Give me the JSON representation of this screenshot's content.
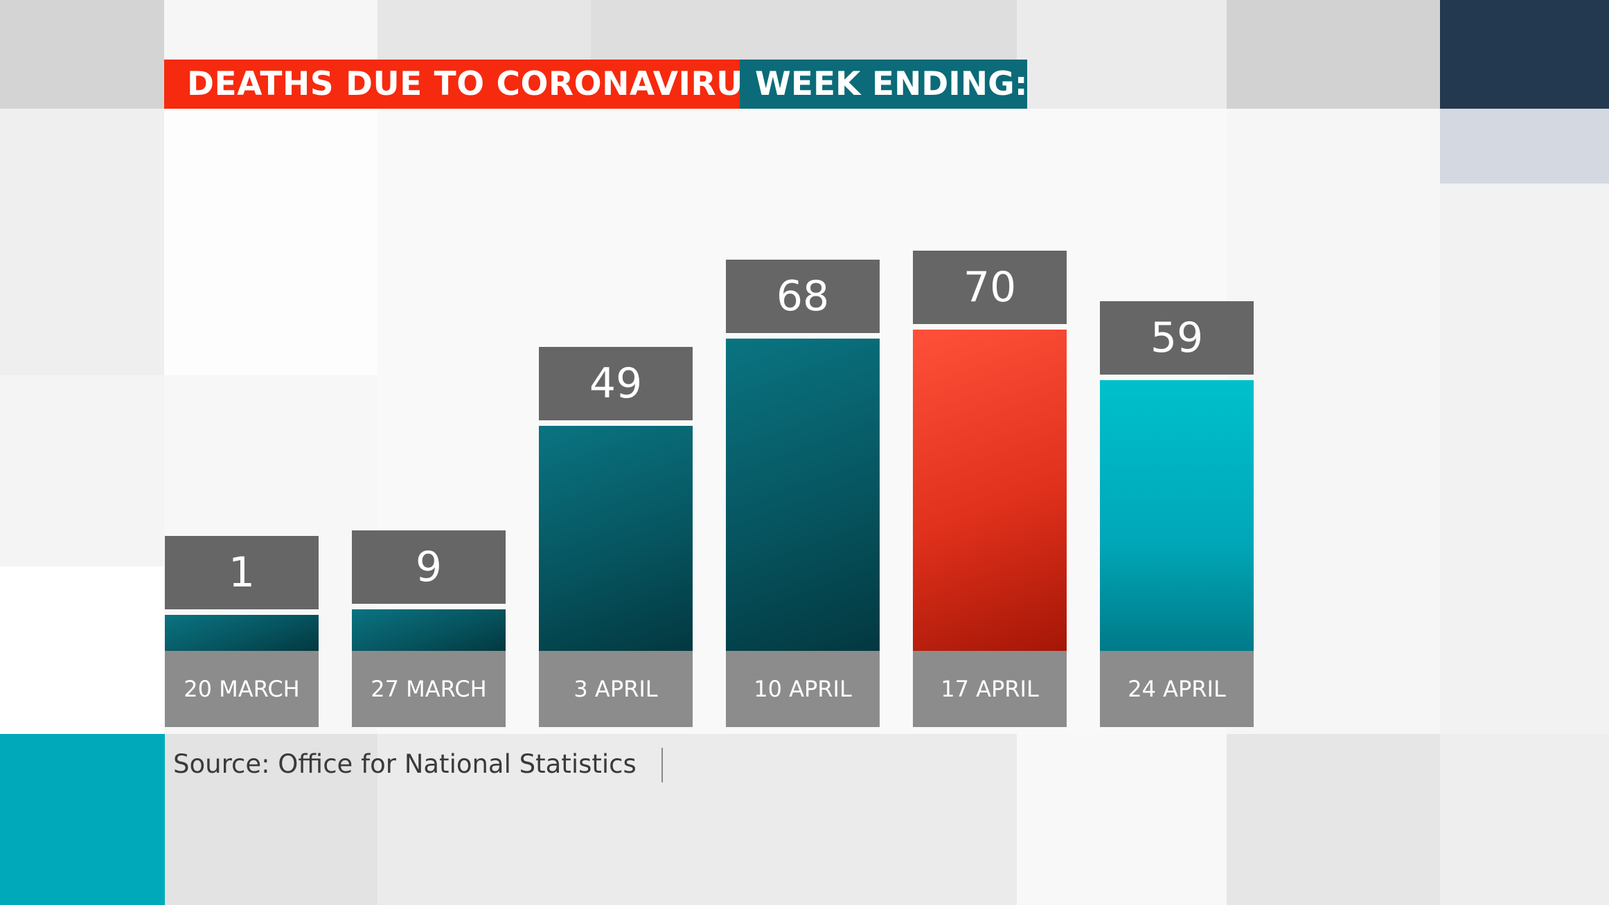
{
  "header": {
    "title": "DEATHS DUE TO CORONAVIRUS",
    "subtitle": "WEEK ENDING:"
  },
  "source": "Source: Office for National Statistics",
  "colors": {
    "accent_red": "#f62a0e",
    "accent_teal": "#0b6b78",
    "bright_teal": "#00aabb",
    "label_gray": "#666666",
    "category_gray": "#8c8c8c"
  },
  "chart_data": {
    "type": "bar",
    "title": "DEATHS DUE TO CORONAVIRUS",
    "subtitle": "WEEK ENDING:",
    "xlabel": "",
    "ylabel": "",
    "categories": [
      "20 MARCH",
      "27 MARCH",
      "3 APRIL",
      "10 APRIL",
      "17 APRIL",
      "24 APRIL"
    ],
    "values": [
      1,
      9,
      49,
      68,
      70,
      59
    ],
    "value_labels": [
      "1",
      "9",
      "49",
      "68",
      "70",
      "59"
    ],
    "bar_colors": [
      "#0b6b78",
      "#0b6b78",
      "#0b6b78",
      "#0b6b78",
      "#e8321a",
      "#00aabb"
    ],
    "ylim": [
      0,
      70
    ],
    "grid": false,
    "legend": "none"
  }
}
